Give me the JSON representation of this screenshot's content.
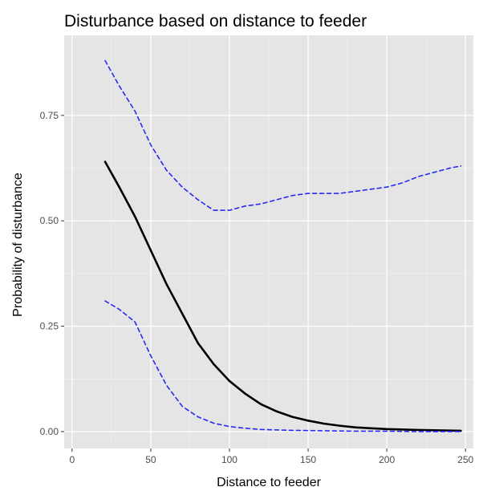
{
  "chart_data": {
    "type": "line",
    "title": "Disturbance based on distance to feeder",
    "xlabel": "Distance to feeder",
    "ylabel": "Probability of disturbance",
    "xlim": [
      -5,
      255
    ],
    "ylim": [
      -0.04,
      0.94
    ],
    "x_ticks": [
      0,
      50,
      100,
      150,
      200,
      250
    ],
    "x_tick_labels": [
      "0",
      "50",
      "100",
      "150",
      "200",
      "250"
    ],
    "y_ticks": [
      0,
      0.25,
      0.5,
      0.75
    ],
    "y_tick_labels": [
      "0.00",
      "0.25",
      "0.50",
      "0.75"
    ],
    "grid": true,
    "background": "#e5e5e5",
    "series": [
      {
        "style": "solid",
        "color": "#000000",
        "points": [
          [
            21,
            0.64
          ],
          [
            30,
            0.58
          ],
          [
            40,
            0.51
          ],
          [
            50,
            0.43
          ],
          [
            60,
            0.35
          ],
          [
            70,
            0.28
          ],
          [
            80,
            0.21
          ],
          [
            90,
            0.16
          ],
          [
            100,
            0.12
          ],
          [
            110,
            0.09
          ],
          [
            120,
            0.065
          ],
          [
            130,
            0.048
          ],
          [
            140,
            0.035
          ],
          [
            150,
            0.026
          ],
          [
            160,
            0.019
          ],
          [
            170,
            0.014
          ],
          [
            180,
            0.01
          ],
          [
            190,
            0.008
          ],
          [
            200,
            0.006
          ],
          [
            220,
            0.004
          ],
          [
            247,
            0.002
          ]
        ]
      },
      {
        "style": "dashed",
        "color": "#2a2af5",
        "points": [
          [
            21,
            0.88
          ],
          [
            30,
            0.82
          ],
          [
            40,
            0.76
          ],
          [
            50,
            0.68
          ],
          [
            60,
            0.62
          ],
          [
            70,
            0.58
          ],
          [
            80,
            0.55
          ],
          [
            90,
            0.525
          ],
          [
            100,
            0.525
          ],
          [
            110,
            0.535
          ],
          [
            120,
            0.54
          ],
          [
            130,
            0.55
          ],
          [
            140,
            0.56
          ],
          [
            150,
            0.565
          ],
          [
            160,
            0.565
          ],
          [
            170,
            0.565
          ],
          [
            180,
            0.57
          ],
          [
            190,
            0.575
          ],
          [
            200,
            0.58
          ],
          [
            210,
            0.59
          ],
          [
            220,
            0.605
          ],
          [
            230,
            0.615
          ],
          [
            240,
            0.625
          ],
          [
            247,
            0.63
          ]
        ]
      },
      {
        "style": "dashed",
        "color": "#2a2af5",
        "points": [
          [
            21,
            0.31
          ],
          [
            30,
            0.29
          ],
          [
            40,
            0.26
          ],
          [
            50,
            0.18
          ],
          [
            60,
            0.11
          ],
          [
            70,
            0.06
          ],
          [
            80,
            0.035
          ],
          [
            90,
            0.02
          ],
          [
            100,
            0.012
          ],
          [
            110,
            0.008
          ],
          [
            120,
            0.005
          ],
          [
            140,
            0.003
          ],
          [
            160,
            0.002
          ],
          [
            180,
            0.001
          ],
          [
            200,
            0.001
          ],
          [
            220,
            0.0
          ],
          [
            247,
            0.0
          ]
        ]
      }
    ]
  }
}
